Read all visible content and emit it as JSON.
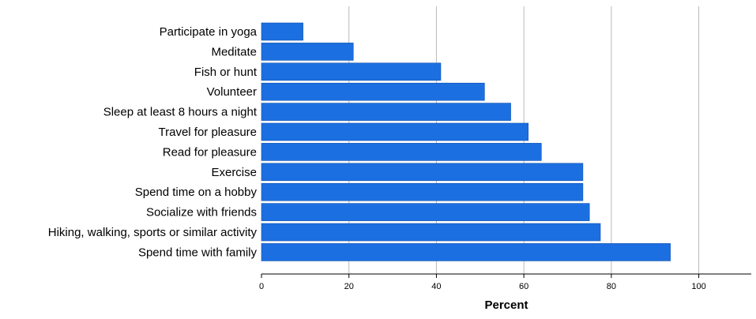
{
  "chart_data": {
    "type": "bar",
    "orientation": "horizontal",
    "categories": [
      "Participate in yoga",
      "Meditate",
      "Fish or hunt",
      "Volunteer",
      "Sleep at least 8 hours a night",
      "Travel for pleasure",
      "Read for pleasure",
      "Exercise",
      "Spend time on a hobby",
      "Socialize with friends",
      "Hiking, walking, sports or similar activity",
      "Spend time with family"
    ],
    "values": [
      9.5,
      21,
      41,
      51,
      57,
      61,
      64,
      73.5,
      73.5,
      75,
      77.5,
      93.5
    ],
    "xlabel": "Percent",
    "ylabel": "",
    "xlim": [
      0,
      112
    ],
    "xticks": [
      "0",
      "20",
      "40",
      "60",
      "80",
      "100"
    ],
    "xtick_values": [
      0,
      20,
      40,
      60,
      80,
      100
    ],
    "grid": "vertical",
    "bar_color": "#1c6fe0",
    "bar_edge_color": "#0d4fb0"
  }
}
